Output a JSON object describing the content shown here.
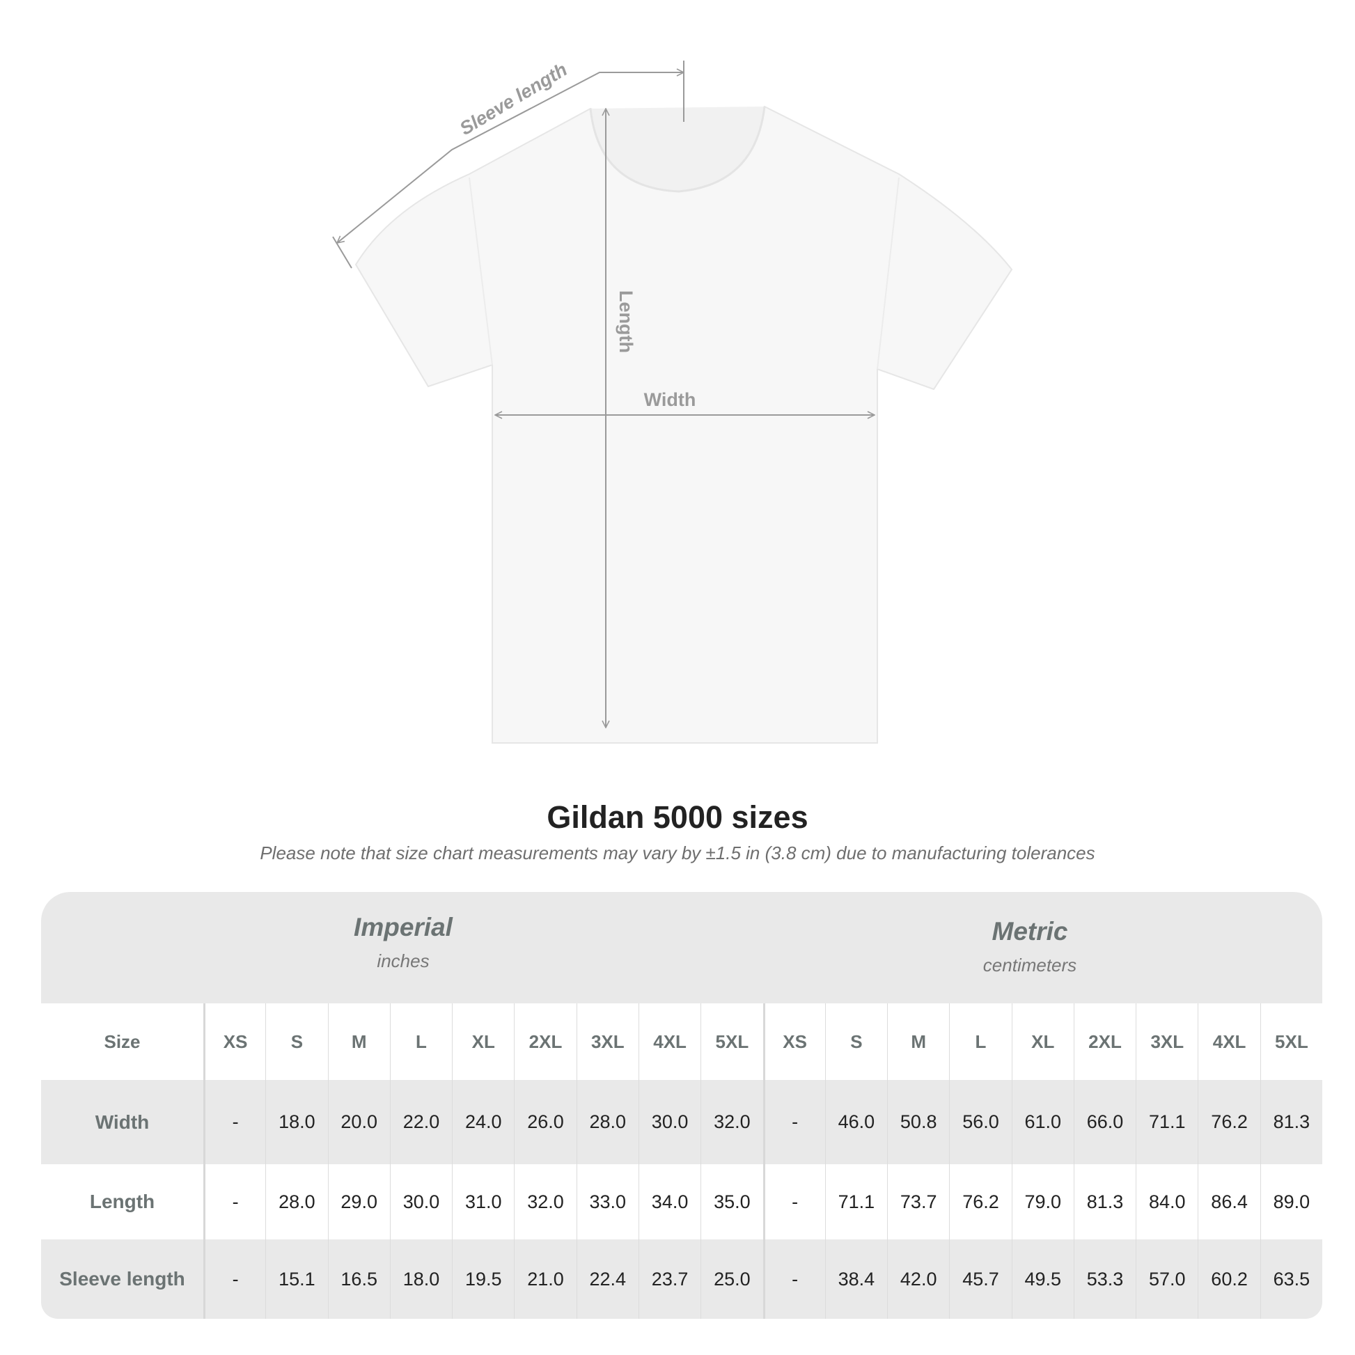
{
  "diagram": {
    "labels": {
      "sleeve": "Sleeve length",
      "length": "Length",
      "width": "Width"
    },
    "colors": {
      "shirt": "#f7f7f7",
      "outline": "#e6e6e6",
      "arrow": "#9a9a9a",
      "label": "#9a9a9a"
    }
  },
  "title": "Gildan 5000 sizes",
  "subtitle": "Please note that size chart measurements may vary by ±1.5 in (3.8 cm) due to manufacturing tolerances",
  "table": {
    "imperial": {
      "name": "Imperial",
      "unit": "inches"
    },
    "metric": {
      "name": "Metric",
      "unit": "centimeters"
    },
    "size_label": "Size",
    "sizes": [
      "XS",
      "S",
      "M",
      "L",
      "XL",
      "2XL",
      "3XL",
      "4XL",
      "5XL"
    ],
    "rows": [
      {
        "label": "Width",
        "imperial": [
          "-",
          "18.0",
          "20.0",
          "22.0",
          "24.0",
          "26.0",
          "28.0",
          "30.0",
          "32.0"
        ],
        "metric": [
          "-",
          "46.0",
          "50.8",
          "56.0",
          "61.0",
          "66.0",
          "71.1",
          "76.2",
          "81.3"
        ]
      },
      {
        "label": "Length",
        "imperial": [
          "-",
          "28.0",
          "29.0",
          "30.0",
          "31.0",
          "32.0",
          "33.0",
          "34.0",
          "35.0"
        ],
        "metric": [
          "-",
          "71.1",
          "73.7",
          "76.2",
          "79.0",
          "81.3",
          "84.0",
          "86.4",
          "89.0"
        ]
      },
      {
        "label": "Sleeve length",
        "imperial": [
          "-",
          "15.1",
          "16.5",
          "18.0",
          "19.5",
          "21.0",
          "22.4",
          "23.7",
          "25.0"
        ],
        "metric": [
          "-",
          "38.4",
          "42.0",
          "45.7",
          "49.5",
          "53.3",
          "57.0",
          "60.2",
          "63.5"
        ]
      }
    ]
  }
}
